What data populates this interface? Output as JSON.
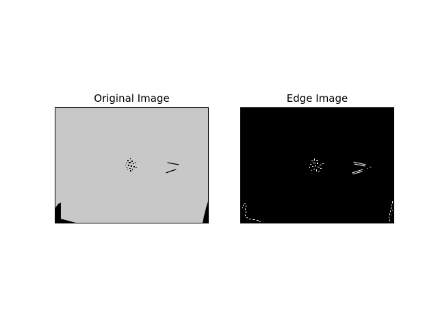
{
  "figure": {
    "panels": [
      {
        "title": "Original Image",
        "background": "#c8c8c8",
        "mark_color": "#000000"
      },
      {
        "title": "Edge Image",
        "background": "#000000",
        "mark_color": "#ffffff"
      }
    ]
  }
}
